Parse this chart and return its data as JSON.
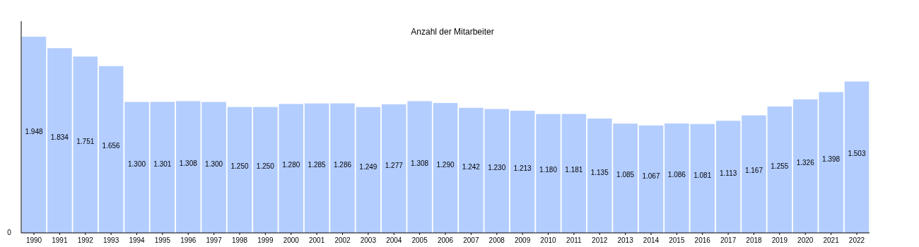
{
  "chart_data": {
    "type": "bar",
    "title": "Anzahl der Mitarbeiter",
    "categories": [
      "1990",
      "1991",
      "1992",
      "1993",
      "1994",
      "1995",
      "1996",
      "1997",
      "1998",
      "1999",
      "2000",
      "2001",
      "2002",
      "2003",
      "2004",
      "2005",
      "2006",
      "2007",
      "2008",
      "2009",
      "2010",
      "2011",
      "2012",
      "2013",
      "2014",
      "2015",
      "2016",
      "2017",
      "2018",
      "2019",
      "2020",
      "2021",
      "2022"
    ],
    "values": [
      1948,
      1834,
      1751,
      1656,
      1300,
      1301,
      1308,
      1300,
      1250,
      1250,
      1280,
      1285,
      1286,
      1249,
      1277,
      1308,
      1290,
      1242,
      1230,
      1213,
      1180,
      1181,
      1135,
      1085,
      1067,
      1086,
      1081,
      1113,
      1167,
      1255,
      1326,
      1398,
      1503
    ],
    "value_labels": [
      "1.948",
      "1.834",
      "1.751",
      "1.656",
      "1.300",
      "1.301",
      "1.308",
      "1.300",
      "1.250",
      "1.250",
      "1.280",
      "1.285",
      "1.286",
      "1.249",
      "1.277",
      "1.308",
      "1.290",
      "1.242",
      "1.230",
      "1.213",
      "1.180",
      "1.181",
      "1.135",
      "1.085",
      "1.067",
      "1.086",
      "1.081",
      "1.113",
      "1.167",
      "1.255",
      "1.326",
      "1.398",
      "1.503"
    ],
    "color": "#b3cdff",
    "annotations": [
      "0"
    ]
  }
}
